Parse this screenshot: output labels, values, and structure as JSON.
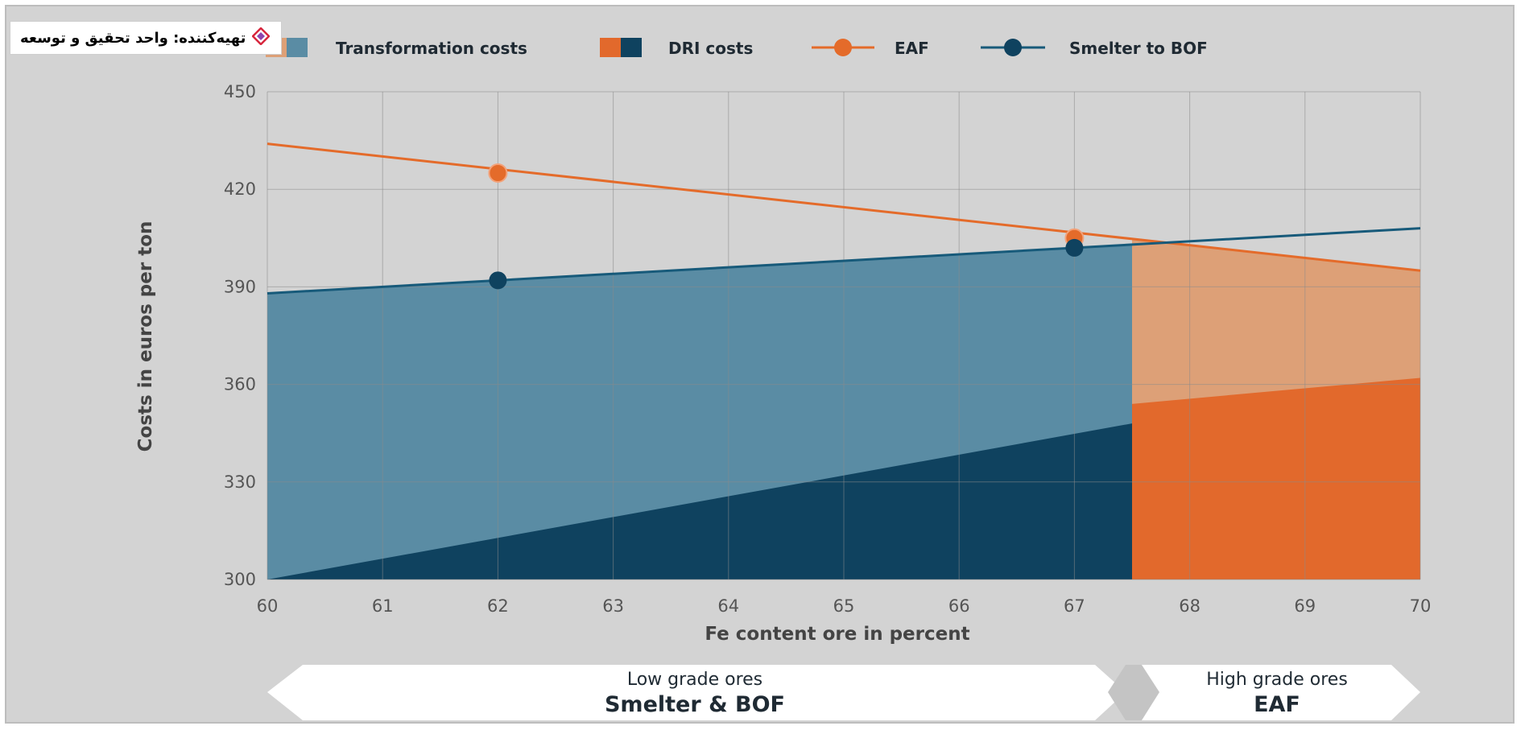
{
  "badge": {
    "text": "تهیه‌کننده: واحد تحقیق و توسعه",
    "icon": "diamond-logo-icon"
  },
  "colors": {
    "blue_light": "#5a8ca4",
    "blue_dark": "#0f425f",
    "orange_light": "#dda077",
    "orange_dark": "#e2692c",
    "eaf_line": "#e46b2a",
    "smelter_line": "#175a7a"
  },
  "chart_data": {
    "type": "area",
    "xlabel": "Fe content ore in percent",
    "ylabel": "Costs in euros per ton",
    "xlim": [
      60,
      70
    ],
    "ylim": [
      300,
      450
    ],
    "x_ticks": [
      "60",
      "61",
      "62",
      "63",
      "64",
      "65",
      "66",
      "67",
      "68",
      "69",
      "70"
    ],
    "y_ticks": [
      "300",
      "330",
      "360",
      "390",
      "420",
      "450"
    ],
    "grid": true,
    "legend_position": "top",
    "legend": [
      {
        "name": "Transformation costs",
        "swatch": "split-area"
      },
      {
        "name": "DRI costs",
        "swatch": "split-area"
      },
      {
        "name": "EAF",
        "swatch": "line-marker"
      },
      {
        "name": "Smelter to BOF",
        "swatch": "line-marker"
      }
    ],
    "crossover_x": 67.5,
    "series": [
      {
        "name": "EAF",
        "type": "line",
        "x": [
          60,
          70
        ],
        "y": [
          434,
          395
        ],
        "markers": {
          "x": [
            62,
            67
          ],
          "y": [
            425,
            405
          ]
        }
      },
      {
        "name": "Smelter to BOF",
        "type": "line",
        "x": [
          60,
          70
        ],
        "y": [
          388,
          408
        ],
        "markers": {
          "x": [
            62,
            67
          ],
          "y": [
            392,
            402
          ]
        }
      },
      {
        "name": "DRI costs",
        "type": "area",
        "x": [
          60,
          67.5
        ],
        "y": [
          300,
          348
        ]
      },
      {
        "name": "DRI costs",
        "type": "area",
        "x": [
          67.5,
          70
        ],
        "y": [
          354,
          362
        ]
      }
    ],
    "bands": [
      {
        "line1": "Low grade ores",
        "line2": "Smelter & BOF",
        "from": 60,
        "to": 67.5
      },
      {
        "line1": "High grade ores",
        "line2": "EAF",
        "from": 67.5,
        "to": 70
      }
    ]
  }
}
